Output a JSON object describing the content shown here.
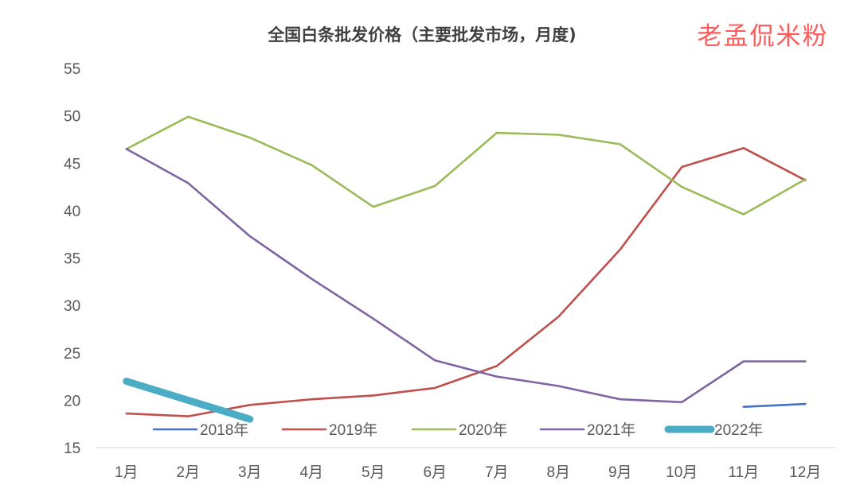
{
  "watermark": "老孟侃米粉",
  "chart_data": {
    "type": "line",
    "title": "全国白条批发价格（主要批发市场，月度)",
    "xlabel": "",
    "ylabel": "",
    "categories": [
      "1月",
      "2月",
      "3月",
      "4月",
      "5月",
      "6月",
      "7月",
      "8月",
      "9月",
      "10月",
      "11月",
      "12月"
    ],
    "ylim": [
      15,
      55
    ],
    "yticks": [
      15,
      20,
      25,
      30,
      35,
      40,
      45,
      50,
      55
    ],
    "grid": false,
    "legend_position": "bottom-inside",
    "series": [
      {
        "name": "2018年",
        "color": "#4472c4",
        "values": [
          null,
          null,
          null,
          null,
          null,
          null,
          null,
          null,
          null,
          null,
          19.3,
          19.6
        ]
      },
      {
        "name": "2019年",
        "color": "#c0504d",
        "values": [
          18.6,
          18.3,
          19.5,
          20.1,
          20.5,
          21.3,
          23.6,
          28.8,
          35.9,
          44.6,
          46.6,
          43.2
        ]
      },
      {
        "name": "2020年",
        "color": "#9bbb59",
        "values": [
          46.5,
          49.9,
          47.7,
          44.8,
          40.4,
          42.6,
          48.2,
          48.0,
          47.0,
          42.5,
          39.6,
          43.3
        ]
      },
      {
        "name": "2021年",
        "color": "#8064a2",
        "values": [
          46.5,
          42.9,
          37.3,
          32.8,
          28.6,
          24.2,
          22.5,
          21.5,
          20.1,
          19.8,
          24.1,
          24.1
        ]
      },
      {
        "name": "2022年",
        "color": "#4bacc6",
        "thick": true,
        "values": [
          22.0,
          20.0,
          18.0,
          null,
          null,
          null,
          null,
          null,
          null,
          null,
          null,
          null
        ]
      }
    ]
  }
}
